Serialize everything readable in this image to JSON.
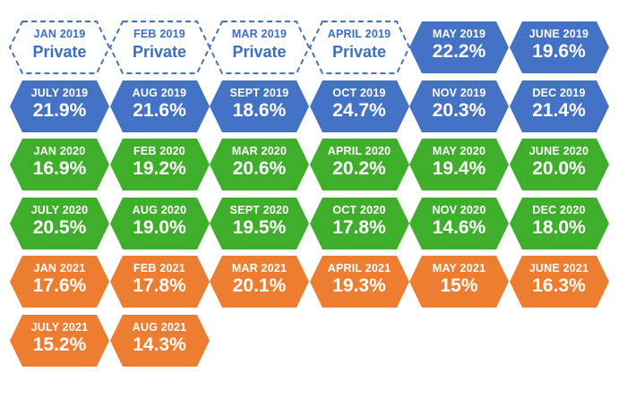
{
  "colors": {
    "blue": "#4472c4",
    "green": "#3fae2a",
    "orange": "#ed7d31",
    "private_outline": "#4472c4"
  },
  "tiles": [
    {
      "month": "JAN 2019",
      "value": "Private",
      "color": "private"
    },
    {
      "month": "FEB 2019",
      "value": "Private",
      "color": "private"
    },
    {
      "month": "MAR 2019",
      "value": "Private",
      "color": "private"
    },
    {
      "month": "APRIL 2019",
      "value": "Private",
      "color": "private"
    },
    {
      "month": "MAY 2019",
      "value": "22.2%",
      "color": "blue"
    },
    {
      "month": "JUNE 2019",
      "value": "19.6%",
      "color": "blue"
    },
    {
      "month": "JULY 2019",
      "value": "21.9%",
      "color": "blue"
    },
    {
      "month": "AUG 2019",
      "value": "21.6%",
      "color": "blue"
    },
    {
      "month": "SEPT 2019",
      "value": "18.6%",
      "color": "blue"
    },
    {
      "month": "OCT 2019",
      "value": "24.7%",
      "color": "blue"
    },
    {
      "month": "NOV 2019",
      "value": "20.3%",
      "color": "blue"
    },
    {
      "month": "DEC 2019",
      "value": "21.4%",
      "color": "blue"
    },
    {
      "month": "JAN 2020",
      "value": "16.9%",
      "color": "green"
    },
    {
      "month": "FEB 2020",
      "value": "19.2%",
      "color": "green"
    },
    {
      "month": "MAR 2020",
      "value": "20.6%",
      "color": "green"
    },
    {
      "month": "APRIL 2020",
      "value": "20.2%",
      "color": "green"
    },
    {
      "month": "MAY 2020",
      "value": "19.4%",
      "color": "green"
    },
    {
      "month": "JUNE 2020",
      "value": "20.0%",
      "color": "green"
    },
    {
      "month": "JULY 2020",
      "value": "20.5%",
      "color": "green"
    },
    {
      "month": "AUG 2020",
      "value": "19.0%",
      "color": "green"
    },
    {
      "month": "SEPT 2020",
      "value": "19.5%",
      "color": "green"
    },
    {
      "month": "OCT 2020",
      "value": "17.8%",
      "color": "green"
    },
    {
      "month": "NOV 2020",
      "value": "14.6%",
      "color": "green"
    },
    {
      "month": "DEC 2020",
      "value": "18.0%",
      "color": "green"
    },
    {
      "month": "JAN 2021",
      "value": "17.6%",
      "color": "orange"
    },
    {
      "month": "FEB 2021",
      "value": "17.8%",
      "color": "orange"
    },
    {
      "month": "MAR 2021",
      "value": "20.1%",
      "color": "orange"
    },
    {
      "month": "APRIL 2021",
      "value": "19.3%",
      "color": "orange"
    },
    {
      "month": "MAY 2021",
      "value": "15%",
      "color": "orange"
    },
    {
      "month": "JUNE 2021",
      "value": "16.3%",
      "color": "orange"
    },
    {
      "month": "JULY 2021",
      "value": "15.2%",
      "color": "orange"
    },
    {
      "month": "AUG 2021",
      "value": "14.3%",
      "color": "orange"
    }
  ]
}
